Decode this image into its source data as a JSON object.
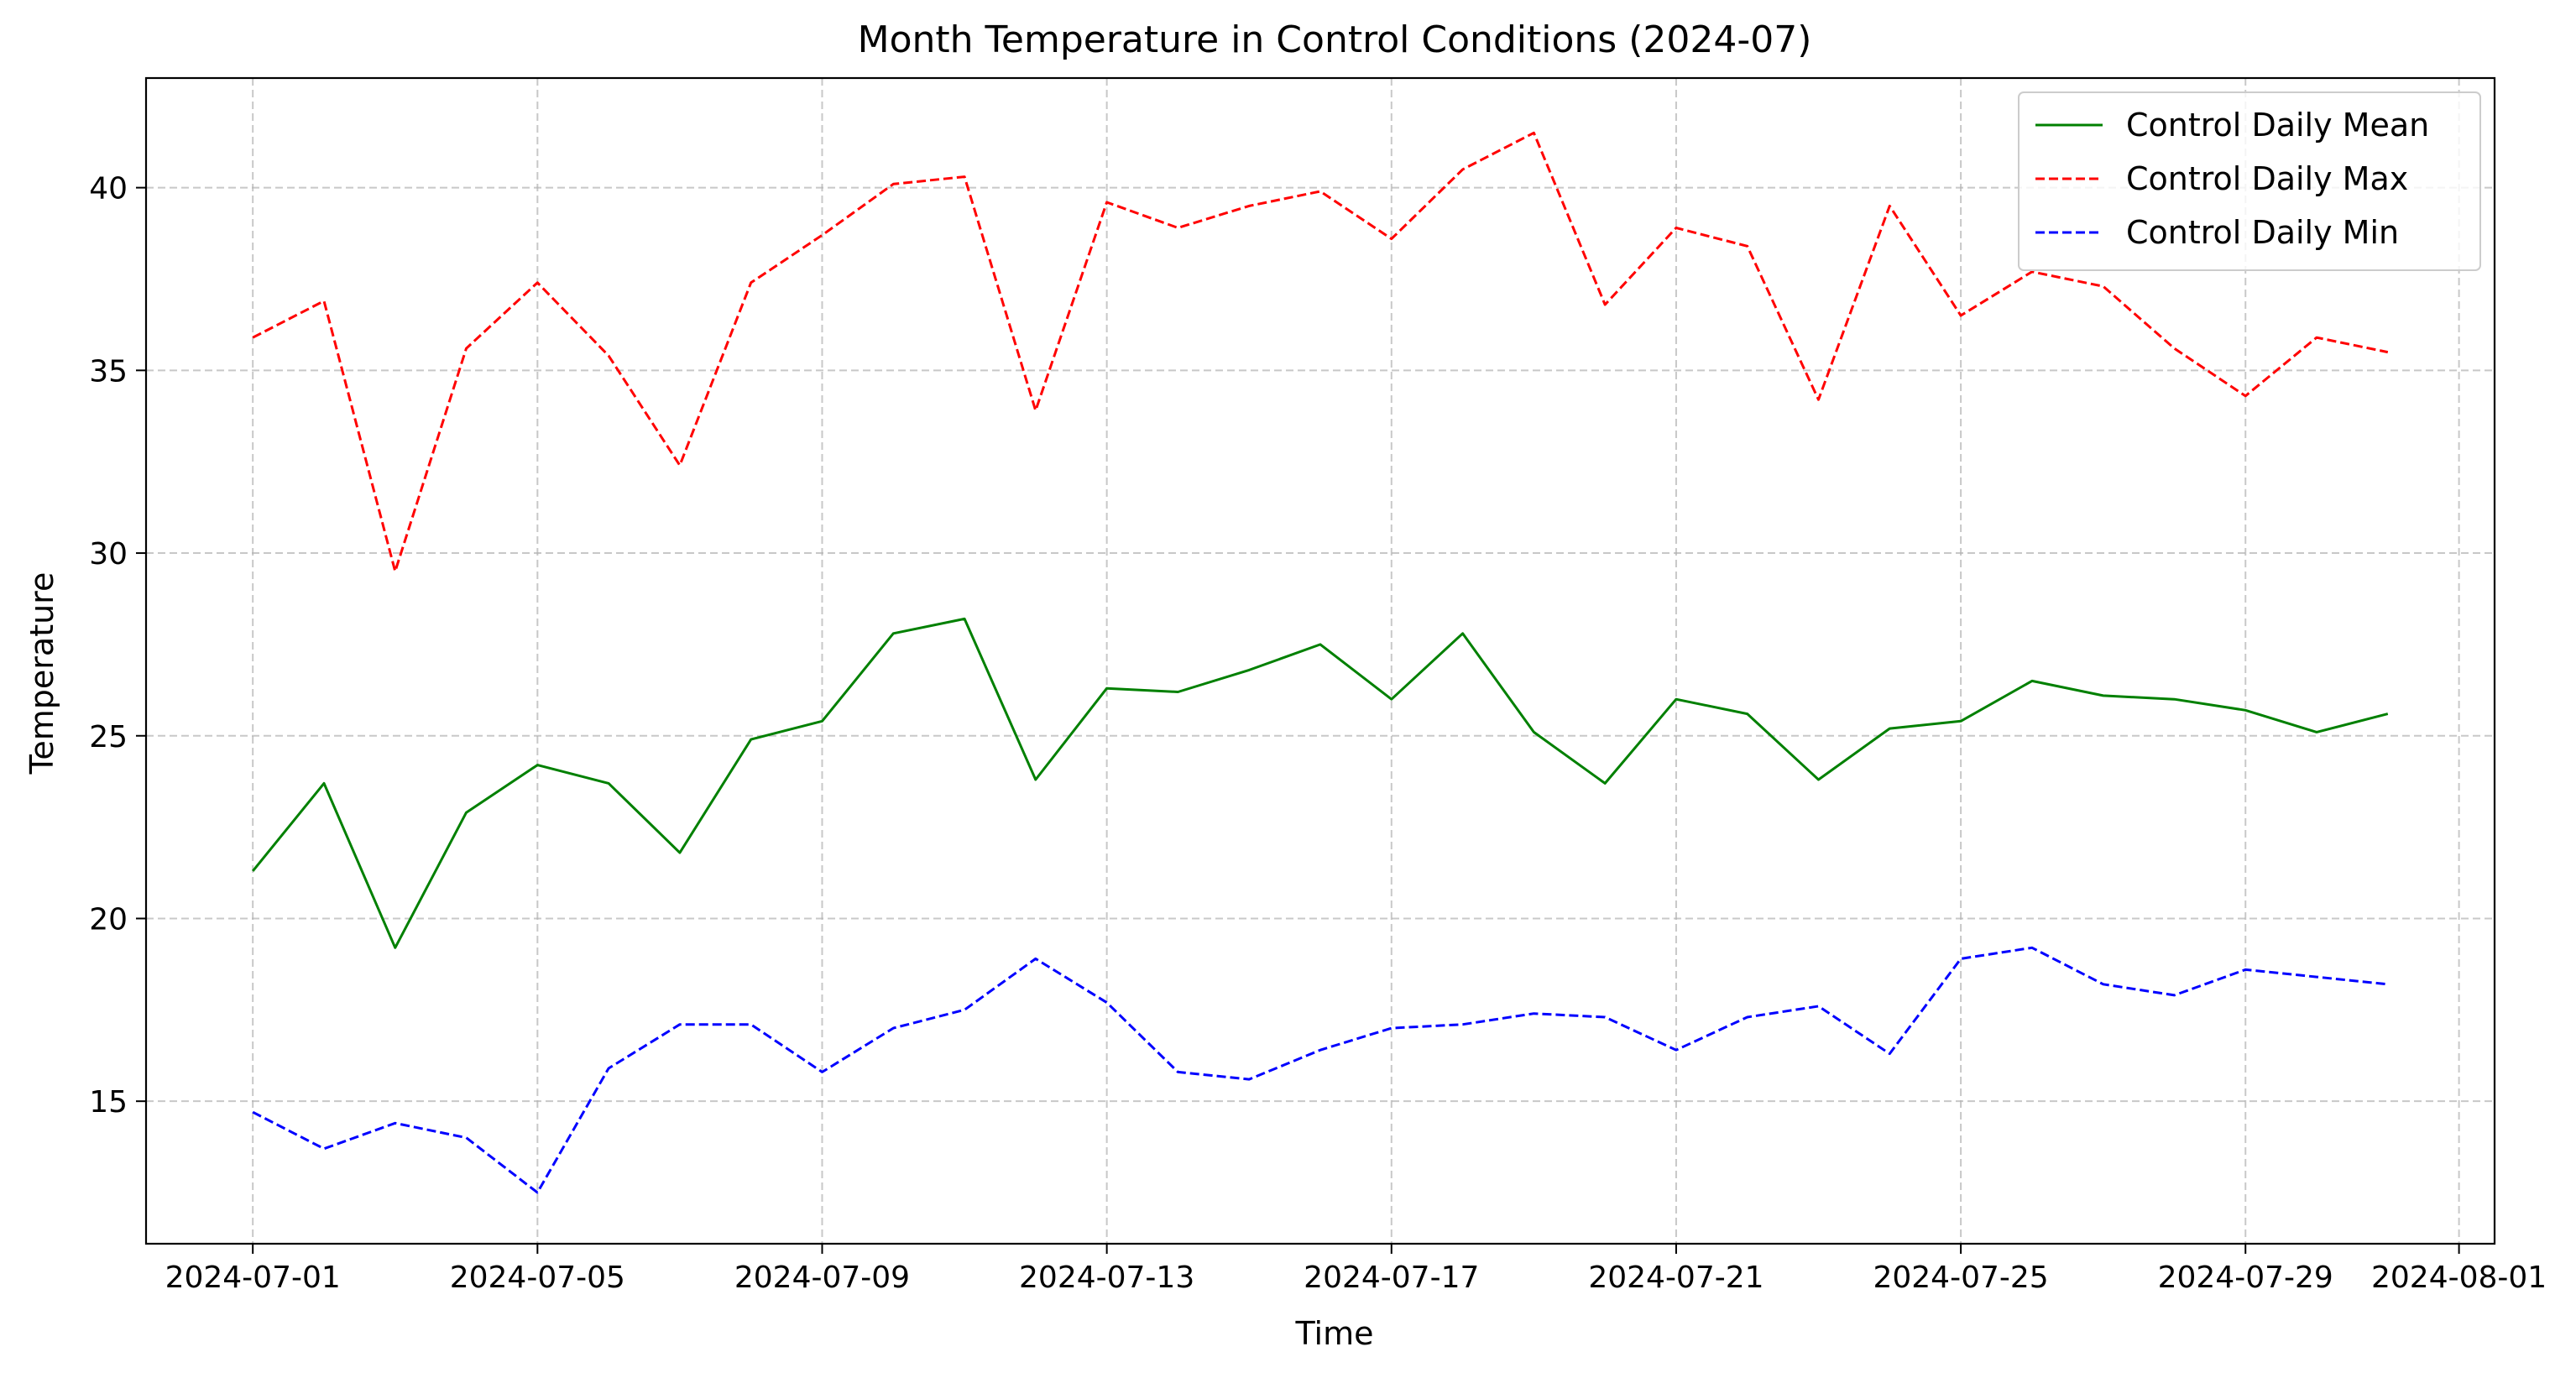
{
  "chart_data": {
    "type": "line",
    "title": "Month Temperature in Control Conditions (2024-07)",
    "xlabel": "Time",
    "ylabel": "Temperature",
    "x": [
      "2024-07-01",
      "2024-07-02",
      "2024-07-03",
      "2024-07-04",
      "2024-07-05",
      "2024-07-06",
      "2024-07-07",
      "2024-07-08",
      "2024-07-09",
      "2024-07-10",
      "2024-07-11",
      "2024-07-12",
      "2024-07-13",
      "2024-07-14",
      "2024-07-15",
      "2024-07-16",
      "2024-07-17",
      "2024-07-18",
      "2024-07-19",
      "2024-07-20",
      "2024-07-21",
      "2024-07-22",
      "2024-07-23",
      "2024-07-24",
      "2024-07-25",
      "2024-07-26",
      "2024-07-27",
      "2024-07-28",
      "2024-07-29",
      "2024-07-30",
      "2024-07-31"
    ],
    "xlim": [
      "2024-06-29T12:00",
      "2024-08-01T12:00"
    ],
    "ylim": [
      11.1,
      43.0
    ],
    "x_ticks": [
      "2024-07-01",
      "2024-07-05",
      "2024-07-09",
      "2024-07-13",
      "2024-07-17",
      "2024-07-21",
      "2024-07-25",
      "2024-07-29",
      "2024-08-01"
    ],
    "y_ticks": [
      15,
      20,
      25,
      30,
      35,
      40
    ],
    "grid": true,
    "legend_position": "top-right",
    "series": [
      {
        "name": "Control Daily Mean",
        "color": "#008000",
        "style": "solid",
        "values": [
          21.3,
          23.7,
          19.2,
          22.9,
          24.2,
          23.7,
          21.8,
          24.9,
          25.4,
          27.8,
          28.2,
          23.8,
          26.3,
          26.2,
          26.8,
          27.5,
          26.0,
          27.8,
          25.1,
          23.7,
          26.0,
          25.6,
          23.8,
          25.2,
          25.4,
          26.5,
          26.1,
          26.0,
          25.7,
          25.1,
          25.6
        ]
      },
      {
        "name": "Control Daily Max",
        "color": "#ff0000",
        "style": "dashed",
        "values": [
          35.9,
          36.9,
          29.5,
          35.6,
          37.4,
          35.4,
          32.4,
          37.4,
          38.7,
          40.1,
          40.3,
          33.9,
          39.6,
          38.9,
          39.5,
          39.9,
          38.6,
          40.5,
          41.5,
          36.8,
          38.9,
          38.4,
          34.2,
          39.5,
          36.5,
          37.7,
          37.3,
          35.6,
          34.3,
          35.9,
          35.5
        ]
      },
      {
        "name": "Control Daily Min",
        "color": "#0000ff",
        "style": "dashed",
        "values": [
          14.7,
          13.7,
          14.4,
          14.0,
          12.5,
          15.9,
          17.1,
          17.1,
          15.8,
          17.0,
          17.5,
          18.9,
          17.7,
          15.8,
          15.6,
          16.4,
          17.0,
          17.1,
          17.4,
          17.3,
          16.4,
          17.3,
          17.6,
          16.3,
          18.9,
          19.2,
          18.2,
          17.9,
          18.6,
          18.4,
          18.2
        ]
      }
    ]
  }
}
